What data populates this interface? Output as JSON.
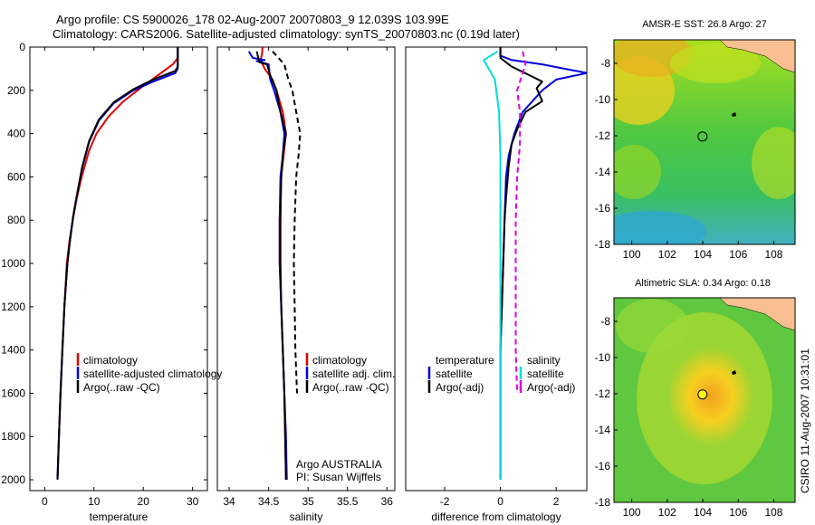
{
  "titles": {
    "line1": "Argo profile: CS 5900026_178 02-Aug-2007 20070803_9 12.039S 103.99E",
    "line2": "Climatology: CARS2006. Satellite-adjusted climatology: synTS_20070803.nc (0.19d later)"
  },
  "vertical_stamp": "CSIRO 11-Aug-2007 10:31:01",
  "chart_data": [
    {
      "id": "temperature",
      "type": "line",
      "xlabel": "temperature",
      "xlim": [
        -3,
        33
      ],
      "ylim": [
        2050,
        0
      ],
      "xticks": [
        0,
        10,
        20,
        30
      ],
      "yticks": [
        0,
        200,
        400,
        600,
        800,
        1000,
        1200,
        1400,
        1600,
        1800,
        2000
      ],
      "legend": {
        "entries": [
          {
            "label": "climatology",
            "color": "#dd0000"
          },
          {
            "label": "satellite-adjusted climatology",
            "color": "#0000dd"
          },
          {
            "label": "Argo(..raw -QC)",
            "color": "#000000"
          }
        ]
      },
      "annotation": [],
      "series": [
        {
          "color": "#dd0000",
          "dash": "",
          "points": [
            [
              27,
              0
            ],
            [
              27,
              50
            ],
            [
              26,
              80
            ],
            [
              23,
              130
            ],
            [
              20,
              180
            ],
            [
              16,
              250
            ],
            [
              13,
              320
            ],
            [
              10.5,
              400
            ],
            [
              9,
              480
            ],
            [
              7.5,
              600
            ],
            [
              6.5,
              700
            ],
            [
              5.7,
              800
            ],
            [
              5,
              900
            ],
            [
              4.5,
              1000
            ],
            [
              4,
              1200
            ],
            [
              3.6,
              1400
            ],
            [
              3.2,
              1600
            ],
            [
              2.9,
              1800
            ],
            [
              2.6,
              2000
            ]
          ]
        },
        {
          "color": "#0000dd",
          "dash": "",
          "points": [
            [
              27,
              0
            ],
            [
              27,
              100
            ],
            [
              26.5,
              120
            ],
            [
              22,
              160
            ],
            [
              18,
              200
            ],
            [
              14,
              260
            ],
            [
              11,
              340
            ],
            [
              9,
              440
            ],
            [
              7.6,
              560
            ],
            [
              6.6,
              680
            ],
            [
              5.8,
              780
            ],
            [
              5.1,
              900
            ],
            [
              4.6,
              1000
            ],
            [
              4,
              1200
            ],
            [
              3.6,
              1400
            ],
            [
              3.2,
              1600
            ],
            [
              2.9,
              1800
            ],
            [
              2.6,
              2000
            ]
          ]
        },
        {
          "color": "#000000",
          "dash": "",
          "points": [
            [
              27,
              0
            ],
            [
              27,
              90
            ],
            [
              26.5,
              110
            ],
            [
              22,
              150
            ],
            [
              18,
              195
            ],
            [
              14,
              255
            ],
            [
              11,
              335
            ],
            [
              9,
              435
            ],
            [
              7.6,
              555
            ],
            [
              6.6,
              675
            ],
            [
              5.8,
              780
            ],
            [
              5.1,
              900
            ],
            [
              4.6,
              1000
            ],
            [
              4,
              1200
            ],
            [
              3.6,
              1400
            ],
            [
              3.2,
              1600
            ],
            [
              2.9,
              1800
            ],
            [
              2.6,
              1995
            ]
          ]
        }
      ]
    },
    {
      "id": "salinity",
      "type": "line",
      "xlabel": "salinity",
      "xlim": [
        33.85,
        36.1
      ],
      "ylim": [
        2050,
        0
      ],
      "xticks": [
        34,
        34.5,
        35,
        35.5,
        36
      ],
      "yticks": [],
      "legend": {
        "entries": [
          {
            "label": "climatology",
            "color": "#dd0000"
          },
          {
            "label": "satellite adj. clim.",
            "color": "#0000dd"
          },
          {
            "label": "Argo(..raw -QC)",
            "color": "#000000"
          }
        ]
      },
      "annotation": [
        "Argo AUSTRALIA",
        "PI: Susan Wijffels"
      ],
      "series": [
        {
          "color": "#dd0000",
          "dash": "",
          "points": [
            [
              34.42,
              0
            ],
            [
              34.42,
              20
            ],
            [
              34.4,
              60
            ],
            [
              34.45,
              100
            ],
            [
              34.55,
              150
            ],
            [
              34.6,
              200
            ],
            [
              34.68,
              300
            ],
            [
              34.72,
              400
            ],
            [
              34.69,
              500
            ],
            [
              34.66,
              600
            ],
            [
              34.64,
              800
            ],
            [
              34.64,
              1000
            ],
            [
              34.66,
              1200
            ],
            [
              34.68,
              1400
            ],
            [
              34.7,
              1600
            ],
            [
              34.71,
              1800
            ],
            [
              34.72,
              2000
            ]
          ]
        },
        {
          "color": "#0000dd",
          "dash": "",
          "points": [
            [
              34.25,
              20
            ],
            [
              34.3,
              50
            ],
            [
              34.45,
              60
            ],
            [
              34.35,
              65
            ],
            [
              34.5,
              80
            ],
            [
              34.52,
              150
            ],
            [
              34.57,
              200
            ],
            [
              34.65,
              300
            ],
            [
              34.7,
              400
            ],
            [
              34.68,
              500
            ],
            [
              34.65,
              600
            ],
            [
              34.64,
              800
            ],
            [
              34.64,
              1000
            ],
            [
              34.66,
              1200
            ],
            [
              34.68,
              1400
            ],
            [
              34.7,
              1600
            ],
            [
              34.72,
              1800
            ],
            [
              34.73,
              2000
            ]
          ]
        },
        {
          "color": "#000000",
          "dash": "",
          "points": [
            [
              34.35,
              20
            ],
            [
              34.38,
              70
            ],
            [
              34.48,
              80
            ],
            [
              34.52,
              130
            ],
            [
              34.6,
              200
            ],
            [
              34.65,
              300
            ],
            [
              34.72,
              400
            ],
            [
              34.68,
              500
            ],
            [
              34.66,
              600
            ],
            [
              34.65,
              800
            ],
            [
              34.65,
              1000
            ],
            [
              34.66,
              1200
            ],
            [
              34.68,
              1400
            ],
            [
              34.7,
              1600
            ],
            [
              34.71,
              1800
            ],
            [
              34.72,
              2000
            ]
          ]
        },
        {
          "color": "#000000",
          "dash": "6,4",
          "points": [
            [
              34.55,
              20
            ],
            [
              34.7,
              80
            ],
            [
              34.75,
              150
            ],
            [
              34.8,
              200
            ],
            [
              34.85,
              300
            ],
            [
              34.9,
              400
            ],
            [
              34.88,
              500
            ],
            [
              34.85,
              600
            ],
            [
              34.83,
              800
            ],
            [
              34.82,
              1000
            ],
            [
              34.83,
              1200
            ],
            [
              34.84,
              1400
            ],
            [
              34.86,
              1600
            ]
          ]
        }
      ]
    },
    {
      "id": "difference",
      "type": "line",
      "xlabel": "difference from climatology",
      "xlim": [
        -3.4,
        3.1
      ],
      "ylim": [
        2050,
        0
      ],
      "xticks": [
        -2,
        0,
        2
      ],
      "yticks": [],
      "legend": {
        "header_left": "temperature",
        "header_right": "salinity",
        "entries": [
          {
            "label": "satellite",
            "color": "#0000dd"
          },
          {
            "label": "Argo(-adj)",
            "color": "#000000"
          },
          {
            "label": "satellite",
            "color": "#00dddd"
          },
          {
            "label": "Argo(-adj)",
            "color": "#dd00dd"
          }
        ]
      },
      "annotation": [],
      "series": [
        {
          "color": "#0000dd",
          "dash": "",
          "points": [
            [
              0,
              0
            ],
            [
              0,
              40
            ],
            [
              0.4,
              60
            ],
            [
              1.5,
              80
            ],
            [
              3.1,
              120
            ],
            [
              2,
              150
            ],
            [
              1.5,
              200
            ],
            [
              0.8,
              300
            ],
            [
              0.5,
              400
            ],
            [
              0.3,
              500
            ],
            [
              0.2,
              600
            ],
            [
              0.15,
              800
            ],
            [
              0.1,
              1000
            ],
            [
              0.05,
              1200
            ],
            [
              0,
              1400
            ],
            [
              0,
              1600
            ],
            [
              0,
              1800
            ],
            [
              0,
              2000
            ]
          ]
        },
        {
          "color": "#000000",
          "dash": "",
          "points": [
            [
              0,
              0
            ],
            [
              0,
              50
            ],
            [
              0.4,
              90
            ],
            [
              1.2,
              140
            ],
            [
              1.5,
              160
            ],
            [
              1.3,
              190
            ],
            [
              1.5,
              250
            ],
            [
              0.9,
              300
            ],
            [
              0.6,
              380
            ],
            [
              0.4,
              450
            ],
            [
              0.3,
              550
            ],
            [
              0.2,
              700
            ],
            [
              0.15,
              800
            ],
            [
              0.1,
              1000
            ],
            [
              0.05,
              1200
            ],
            [
              0,
              1400
            ],
            [
              0,
              1600
            ],
            [
              0,
              1800
            ],
            [
              0,
              2000
            ]
          ]
        },
        {
          "color": "#00dddd",
          "dash": "",
          "points": [
            [
              -0.1,
              20
            ],
            [
              -0.6,
              60
            ],
            [
              -0.2,
              150
            ],
            [
              -0.05,
              300
            ],
            [
              0,
              500
            ],
            [
              0,
              800
            ],
            [
              0,
              1000
            ],
            [
              0,
              1200
            ],
            [
              0,
              1400
            ],
            [
              0,
              1600
            ],
            [
              0,
              1800
            ],
            [
              0,
              2000
            ]
          ]
        },
        {
          "color": "#dd00dd",
          "dash": "6,4",
          "points": [
            [
              0.8,
              20
            ],
            [
              0.9,
              80
            ],
            [
              0.6,
              200
            ],
            [
              0.7,
              300
            ],
            [
              0.7,
              450
            ],
            [
              0.6,
              600
            ],
            [
              0.55,
              800
            ],
            [
              0.55,
              1000
            ],
            [
              0.55,
              1200
            ],
            [
              0.55,
              1400
            ],
            [
              0.6,
              1600
            ]
          ]
        }
      ]
    },
    {
      "id": "sst-map",
      "type": "heatmap",
      "title": "AMSR-E SST: 26.8  Argo: 27",
      "xlim": [
        99,
        109.2
      ],
      "ylim": [
        -18,
        -6.7
      ],
      "xticks": [
        100,
        102,
        104,
        106,
        108
      ],
      "yticks": [
        -8,
        -10,
        -12,
        -14,
        -16,
        -18
      ],
      "marker": {
        "lon": 103.99,
        "lat": -12.039,
        "fill": "none"
      }
    },
    {
      "id": "sla-map",
      "type": "heatmap",
      "title": "Altimetric SLA: 0.34  Argo: 0.18",
      "xlim": [
        99,
        109.2
      ],
      "ylim": [
        -18,
        -6.7
      ],
      "xticks": [
        100,
        102,
        104,
        106,
        108
      ],
      "yticks": [
        -8,
        -10,
        -12,
        -14,
        -16,
        -18
      ],
      "marker": {
        "lon": 103.99,
        "lat": -12.039,
        "fill": "#ffff00"
      }
    }
  ]
}
